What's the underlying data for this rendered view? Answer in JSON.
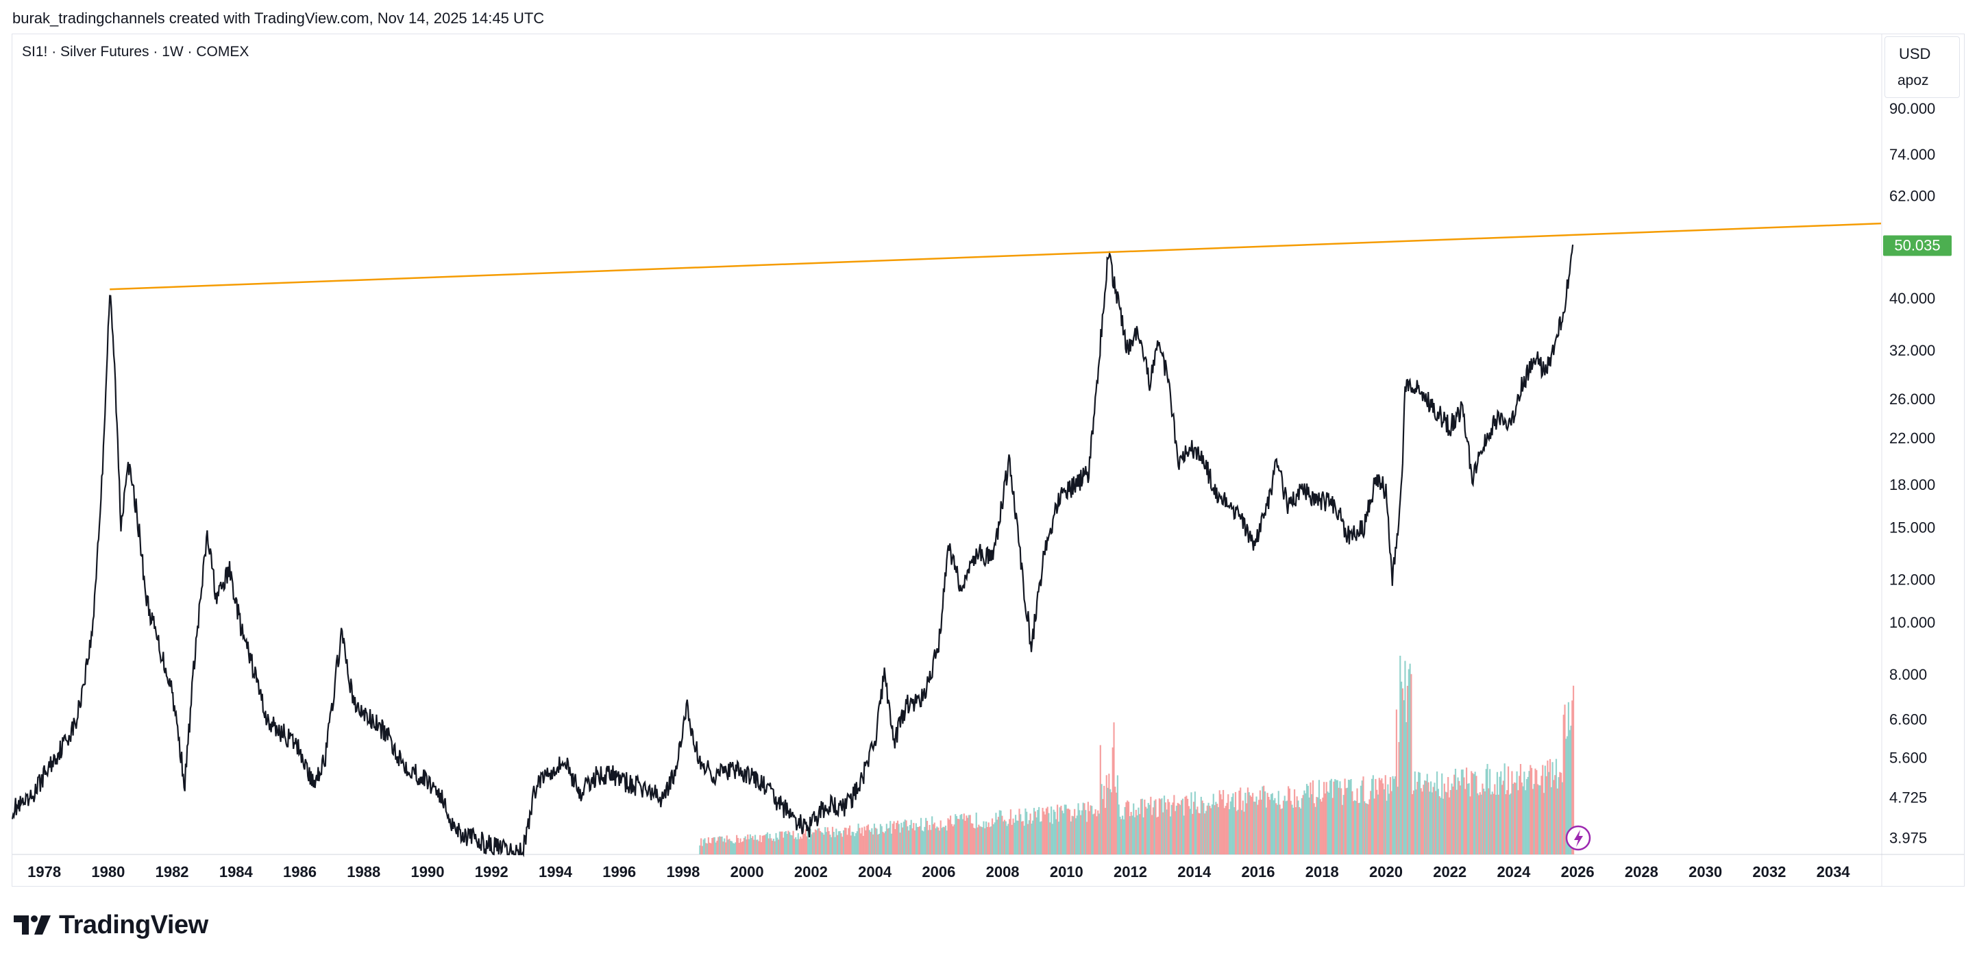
{
  "header": {
    "attribution": "burak_tradingchannels created with TradingView.com, Nov 14, 2025 14:45 UTC"
  },
  "symbol": {
    "title": "SI1! · Silver Futures · 1W · COMEX"
  },
  "scale": {
    "currency": "USD",
    "unit": "apoz"
  },
  "price_label": {
    "value": "50.035",
    "color": "#4caf50"
  },
  "brand": {
    "name": "TradingView",
    "icon": "tradingview-logo-icon"
  },
  "flash_icon": {
    "name": "lightning-icon",
    "color": "#9c27b0"
  },
  "colors": {
    "price_line": "#131722",
    "trendline": "#f59b00",
    "volume_up": "#80cbc4",
    "volume_down": "#f48f8f",
    "axis_text": "#131722"
  },
  "chart_data": {
    "type": "line",
    "yscale": "log",
    "xlim": [
      1977.0,
      2035.5
    ],
    "ylim": [
      3.7,
      120
    ],
    "x_ticks": [
      "1978",
      "1980",
      "1982",
      "1984",
      "1986",
      "1988",
      "1990",
      "1992",
      "1994",
      "1996",
      "1998",
      "2000",
      "2002",
      "2004",
      "2006",
      "2008",
      "2010",
      "2012",
      "2014",
      "2016",
      "2018",
      "2020",
      "2022",
      "2024",
      "2026",
      "2028",
      "2030",
      "2032",
      "2034"
    ],
    "y_ticks": [
      "90.000",
      "74.000",
      "62.000",
      "40.000",
      "32.000",
      "26.000",
      "22.000",
      "18.000",
      "15.000",
      "12.000",
      "10.000",
      "8.000",
      "6.600",
      "5.600",
      "4.725",
      "3.975"
    ],
    "series": [
      {
        "values": [
          [
            1977.0,
            4.5
          ],
          [
            1977.5,
            4.6
          ],
          [
            1978.0,
            5.2
          ],
          [
            1978.5,
            5.8
          ],
          [
            1979.0,
            6.5
          ],
          [
            1979.5,
            9.5
          ],
          [
            1979.8,
            18
          ],
          [
            1980.05,
            41
          ],
          [
            1980.2,
            30
          ],
          [
            1980.4,
            15
          ],
          [
            1980.6,
            20
          ],
          [
            1980.9,
            16
          ],
          [
            1981.2,
            11
          ],
          [
            1981.6,
            9
          ],
          [
            1982.0,
            7.5
          ],
          [
            1982.4,
            5.0
          ],
          [
            1982.7,
            8.5
          ],
          [
            1983.1,
            14.5
          ],
          [
            1983.4,
            11
          ],
          [
            1983.8,
            12.5
          ],
          [
            1984.2,
            9.5
          ],
          [
            1984.6,
            8
          ],
          [
            1985.0,
            6.5
          ],
          [
            1985.5,
            6.2
          ],
          [
            1986.0,
            5.8
          ],
          [
            1986.4,
            5.0
          ],
          [
            1986.8,
            5.6
          ],
          [
            1987.3,
            9.5
          ],
          [
            1987.7,
            7.0
          ],
          [
            1988.2,
            6.6
          ],
          [
            1988.7,
            6.2
          ],
          [
            1989.2,
            5.5
          ],
          [
            1989.7,
            5.2
          ],
          [
            1990.3,
            4.9
          ],
          [
            1990.8,
            4.2
          ],
          [
            1991.2,
            4.0
          ],
          [
            1991.7,
            3.9
          ],
          [
            1992.2,
            3.8
          ],
          [
            1992.7,
            3.7
          ],
          [
            1993.0,
            3.8
          ],
          [
            1993.4,
            5.0
          ],
          [
            1993.8,
            5.3
          ],
          [
            1994.3,
            5.5
          ],
          [
            1994.8,
            4.8
          ],
          [
            1995.3,
            5.2
          ],
          [
            1995.8,
            5.2
          ],
          [
            1996.3,
            5.0
          ],
          [
            1996.8,
            4.9
          ],
          [
            1997.3,
            4.7
          ],
          [
            1997.8,
            5.3
          ],
          [
            1998.1,
            7.0
          ],
          [
            1998.5,
            5.5
          ],
          [
            1999.0,
            5.2
          ],
          [
            1999.5,
            5.3
          ],
          [
            2000.0,
            5.2
          ],
          [
            2000.5,
            5.0
          ],
          [
            2001.0,
            4.6
          ],
          [
            2001.5,
            4.3
          ],
          [
            2001.9,
            4.1
          ],
          [
            2002.5,
            4.6
          ],
          [
            2003.0,
            4.5
          ],
          [
            2003.5,
            4.9
          ],
          [
            2004.0,
            6.0
          ],
          [
            2004.3,
            8.0
          ],
          [
            2004.6,
            6.0
          ],
          [
            2005.0,
            7.0
          ],
          [
            2005.5,
            7.2
          ],
          [
            2006.0,
            9.0
          ],
          [
            2006.3,
            14.0
          ],
          [
            2006.7,
            11.5
          ],
          [
            2007.2,
            13.5
          ],
          [
            2007.7,
            13.0
          ],
          [
            2008.2,
            20.0
          ],
          [
            2008.6,
            12.5
          ],
          [
            2008.9,
            9.0
          ],
          [
            2009.3,
            13.5
          ],
          [
            2009.8,
            17.0
          ],
          [
            2010.3,
            18.0
          ],
          [
            2010.7,
            19.0
          ],
          [
            2011.0,
            30.0
          ],
          [
            2011.3,
            48.0
          ],
          [
            2011.6,
            40.0
          ],
          [
            2011.9,
            32.0
          ],
          [
            2012.2,
            34.0
          ],
          [
            2012.6,
            28.0
          ],
          [
            2012.9,
            33.0
          ],
          [
            2013.2,
            28.0
          ],
          [
            2013.5,
            20.0
          ],
          [
            2013.9,
            21.0
          ],
          [
            2014.3,
            20.0
          ],
          [
            2014.7,
            17.0
          ],
          [
            2015.1,
            16.5
          ],
          [
            2015.6,
            15.0
          ],
          [
            2015.9,
            14.0
          ],
          [
            2016.3,
            16.5
          ],
          [
            2016.6,
            20.0
          ],
          [
            2016.9,
            16.5
          ],
          [
            2017.4,
            17.5
          ],
          [
            2017.9,
            16.8
          ],
          [
            2018.4,
            16.5
          ],
          [
            2018.8,
            14.5
          ],
          [
            2019.3,
            15.0
          ],
          [
            2019.7,
            18.5
          ],
          [
            2020.0,
            17.5
          ],
          [
            2020.2,
            12.0
          ],
          [
            2020.5,
            18.0
          ],
          [
            2020.6,
            28.0
          ],
          [
            2021.0,
            27.0
          ],
          [
            2021.5,
            25.0
          ],
          [
            2022.0,
            23.0
          ],
          [
            2022.4,
            25.0
          ],
          [
            2022.7,
            18.5
          ],
          [
            2023.1,
            22.0
          ],
          [
            2023.5,
            24.0
          ],
          [
            2023.9,
            23.0
          ],
          [
            2024.3,
            28.0
          ],
          [
            2024.7,
            31.0
          ],
          [
            2025.0,
            29.0
          ],
          [
            2025.3,
            33.0
          ],
          [
            2025.6,
            38.0
          ],
          [
            2025.8,
            48.0
          ],
          [
            2025.87,
            50.035
          ]
        ]
      }
    ],
    "trendline": {
      "from": [
        1980.05,
        41.5
      ],
      "to": [
        2035.5,
        55.0
      ]
    },
    "volume": {
      "start": 1998.5,
      "end": 2025.87,
      "max_label": ""
    }
  }
}
